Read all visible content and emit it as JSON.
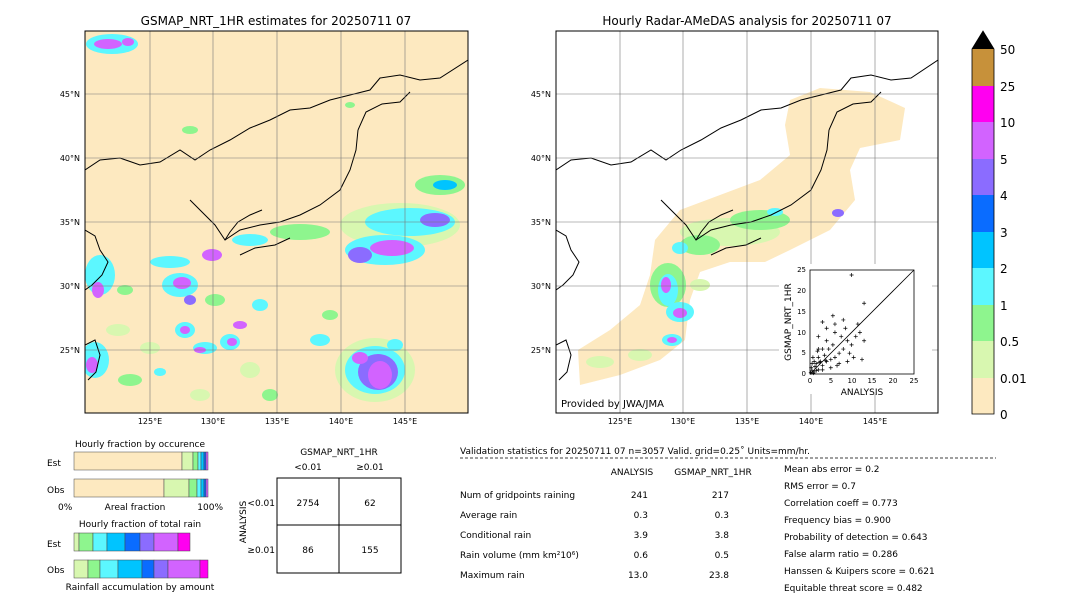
{
  "colors": {
    "land": "#fde9c0",
    "c0": "#fde9c0",
    "c001": "#fdf3d0",
    "c05": "#d8f7b0",
    "c1": "#8ef58e",
    "c2": "#5cf7ff",
    "c3": "#00c4ff",
    "c4": "#0a6cff",
    "c5": "#8b6cff",
    "c10": "#d263ff",
    "c25": "#ff00f0",
    "c50": "#c7913a"
  },
  "maps": {
    "left_title": "GSMAP_NRT_1HR estimates for 20250711 07",
    "right_title": "Hourly Radar-AMeDAS analysis for 20250711 07",
    "lat_labels": [
      "45°N",
      "40°N",
      "35°N",
      "30°N",
      "25°N"
    ],
    "lon_labels": [
      "125°E",
      "130°E",
      "135°E",
      "140°E",
      "145°E"
    ],
    "provider": "Provided by JWA/JMA"
  },
  "colorbar": {
    "labels": [
      "50",
      "25",
      "10",
      "5",
      "4",
      "3",
      "2",
      "1",
      "0.5",
      "0.01",
      "0"
    ]
  },
  "scatter": {
    "xlabel": "ANALYSIS",
    "ylabel": "GSMAP_NRT_1HR",
    "ticks": [
      "0",
      "5",
      "10",
      "15",
      "20",
      "25"
    ],
    "points": [
      [
        0.2,
        0.3
      ],
      [
        0.5,
        0.8
      ],
      [
        1,
        0.5
      ],
      [
        1.2,
        1.8
      ],
      [
        0.3,
        1.5
      ],
      [
        2,
        1
      ],
      [
        2.5,
        3
      ],
      [
        1.5,
        2.5
      ],
      [
        0.8,
        0.2
      ],
      [
        3,
        2
      ],
      [
        3.5,
        4.5
      ],
      [
        4,
        3
      ],
      [
        2,
        4
      ],
      [
        5,
        3.5
      ],
      [
        4.5,
        6
      ],
      [
        6,
        4
      ],
      [
        5.5,
        7
      ],
      [
        7,
        5
      ],
      [
        3,
        6
      ],
      [
        6.5,
        2
      ],
      [
        8,
        6
      ],
      [
        7.5,
        9
      ],
      [
        9,
        8
      ],
      [
        10,
        7
      ],
      [
        8.5,
        11
      ],
      [
        9.5,
        5
      ],
      [
        11,
        9
      ],
      [
        12,
        10
      ],
      [
        13,
        8
      ],
      [
        11.5,
        12
      ],
      [
        6,
        10
      ],
      [
        4,
        8
      ],
      [
        2,
        6
      ],
      [
        1,
        3
      ],
      [
        0.5,
        2.5
      ],
      [
        3,
        1
      ],
      [
        5,
        1.5
      ],
      [
        7,
        2.5
      ],
      [
        9,
        3
      ],
      [
        10.5,
        4
      ],
      [
        12.5,
        3.5
      ],
      [
        4,
        11
      ],
      [
        6,
        12
      ],
      [
        2,
        9
      ],
      [
        3,
        12.5
      ],
      [
        5.5,
        14
      ],
      [
        8,
        13
      ],
      [
        13,
        17
      ],
      [
        10,
        23.8
      ],
      [
        1.5,
        0.8
      ],
      [
        2.2,
        2.8
      ],
      [
        3.8,
        3.2
      ],
      [
        0.7,
        4
      ],
      [
        1.8,
        5.5
      ]
    ]
  },
  "occurrence": {
    "title": "Hourly fraction by occurence",
    "row_est": "Est",
    "row_obs": "Obs",
    "axis_left": "0%",
    "axis_mid": "Areal fraction",
    "axis_right": "100%"
  },
  "amount": {
    "title": "Hourly fraction of total rain",
    "row_est": "Est",
    "row_obs": "Obs",
    "axis_label": "Rainfall accumulation by amount"
  },
  "contingency": {
    "title": "GSMAP_NRT_1HR",
    "col1": "<0.01",
    "col2": "≥0.01",
    "side": "ANALYSIS",
    "row1": "<0.01",
    "row2": "≥0.01",
    "a": "2754",
    "b": "62",
    "c": "86",
    "d": "155"
  },
  "stats": {
    "header": "Validation statistics for 20250711 07  n=3057 Valid. grid=0.25˚ Units=mm/hr.",
    "col_analysis": "ANALYSIS",
    "col_gsmap": "GSMAP_NRT_1HR",
    "rows": [
      {
        "label": "Num of gridpoints raining",
        "a": "241",
        "g": "217"
      },
      {
        "label": "Average rain",
        "a": "0.3",
        "g": "0.3"
      },
      {
        "label": "Conditional rain",
        "a": "3.9",
        "g": "3.8"
      },
      {
        "label": "Rain volume (mm km²10⁶)",
        "a": "0.6",
        "g": "0.5"
      },
      {
        "label": "Maximum rain",
        "a": "13.0",
        "g": "23.8"
      }
    ],
    "scores": [
      "Mean abs error =    0.2",
      "RMS error =    0.7",
      "Correlation coeff =  0.773",
      "Frequency bias =  0.900",
      "Probability of detection =  0.643",
      "False alarm ratio =  0.286",
      "Hanssen & Kuipers score =  0.621",
      "Equitable threat score =  0.482"
    ]
  }
}
